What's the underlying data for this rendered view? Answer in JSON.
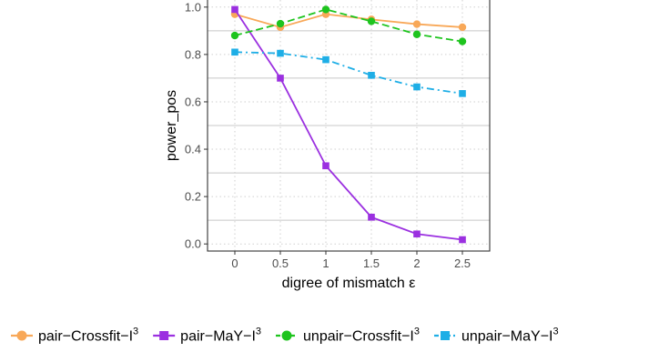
{
  "chart_data": {
    "type": "line",
    "xlabel": "digree of mismatch ε",
    "ylabel": "power_pos",
    "x": [
      0,
      0.5,
      1,
      1.5,
      2,
      2.5
    ],
    "x_tick_labels": [
      "0",
      "0.5",
      "1",
      "1.5",
      "2",
      "2.5"
    ],
    "y_tick_labels": [
      "0.0",
      "0.2",
      "0.4",
      "0.6",
      "0.8",
      "1.0"
    ],
    "xlim": [
      -0.3,
      2.8
    ],
    "ylim": [
      -0.03,
      1.03
    ],
    "grid": true,
    "legend_position": "bottom",
    "series": [
      {
        "name": "pair−Crossfit−I",
        "name_sup": "3",
        "values": [
          0.97,
          0.915,
          0.97,
          0.948,
          0.928,
          0.915
        ],
        "color": "#F8A858",
        "marker": "circle",
        "dash": "solid"
      },
      {
        "name": "pair−MaY−I",
        "name_sup": "3",
        "values": [
          0.99,
          0.7,
          0.33,
          0.113,
          0.042,
          0.018
        ],
        "color": "#9B30E0",
        "marker": "square",
        "dash": "solid"
      },
      {
        "name": "unpair−Crossfit−I",
        "name_sup": "3",
        "values": [
          0.88,
          0.93,
          0.99,
          0.94,
          0.885,
          0.855
        ],
        "color": "#1EC41E",
        "marker": "circle",
        "dash": "dashed"
      },
      {
        "name": "unpair−MaY−I",
        "name_sup": "3",
        "values": [
          0.81,
          0.805,
          0.778,
          0.712,
          0.663,
          0.635
        ],
        "color": "#1EAEE6",
        "marker": "square",
        "dash": "dashdot"
      }
    ]
  }
}
